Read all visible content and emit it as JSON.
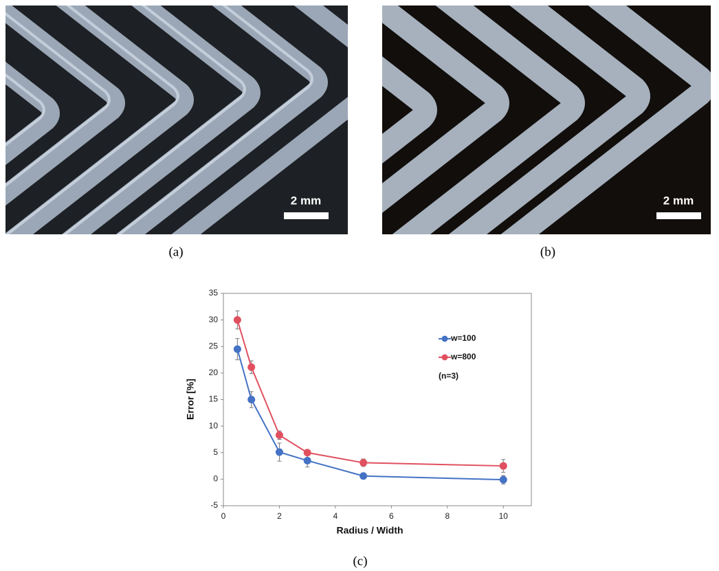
{
  "panels": {
    "a": {
      "label": "(a)",
      "scale_bar": "2 mm"
    },
    "b": {
      "label": "(b)",
      "scale_bar": "2 mm"
    },
    "c": {
      "label": "(c)"
    }
  },
  "chart_data": {
    "type": "line",
    "x_label": "Radius / Width",
    "y_label": "Error [%]",
    "annotation": "(n=3)",
    "x": [
      0.5,
      1,
      2,
      3,
      5,
      10
    ],
    "series": [
      {
        "name": "w=100",
        "color": "#4472c4",
        "values": [
          24.5,
          15,
          5.1,
          3.5,
          0.6,
          -0.1
        ],
        "errors": [
          2,
          1.5,
          1.7,
          1.2,
          0.3,
          0.8
        ]
      },
      {
        "name": "w=800",
        "color": "#e0505f",
        "values": [
          30,
          21.1,
          8.3,
          5,
          3.1,
          2.5
        ],
        "errors": [
          1.7,
          1.2,
          0.8,
          0.5,
          0.7,
          1.2
        ]
      }
    ],
    "xlim": [
      0,
      11
    ],
    "xticks": [
      0,
      2,
      4,
      6,
      8,
      10
    ],
    "ylim": [
      -5,
      35
    ],
    "yticks": [
      -5,
      0,
      5,
      10,
      15,
      20,
      25,
      30,
      35
    ],
    "grid": false
  }
}
